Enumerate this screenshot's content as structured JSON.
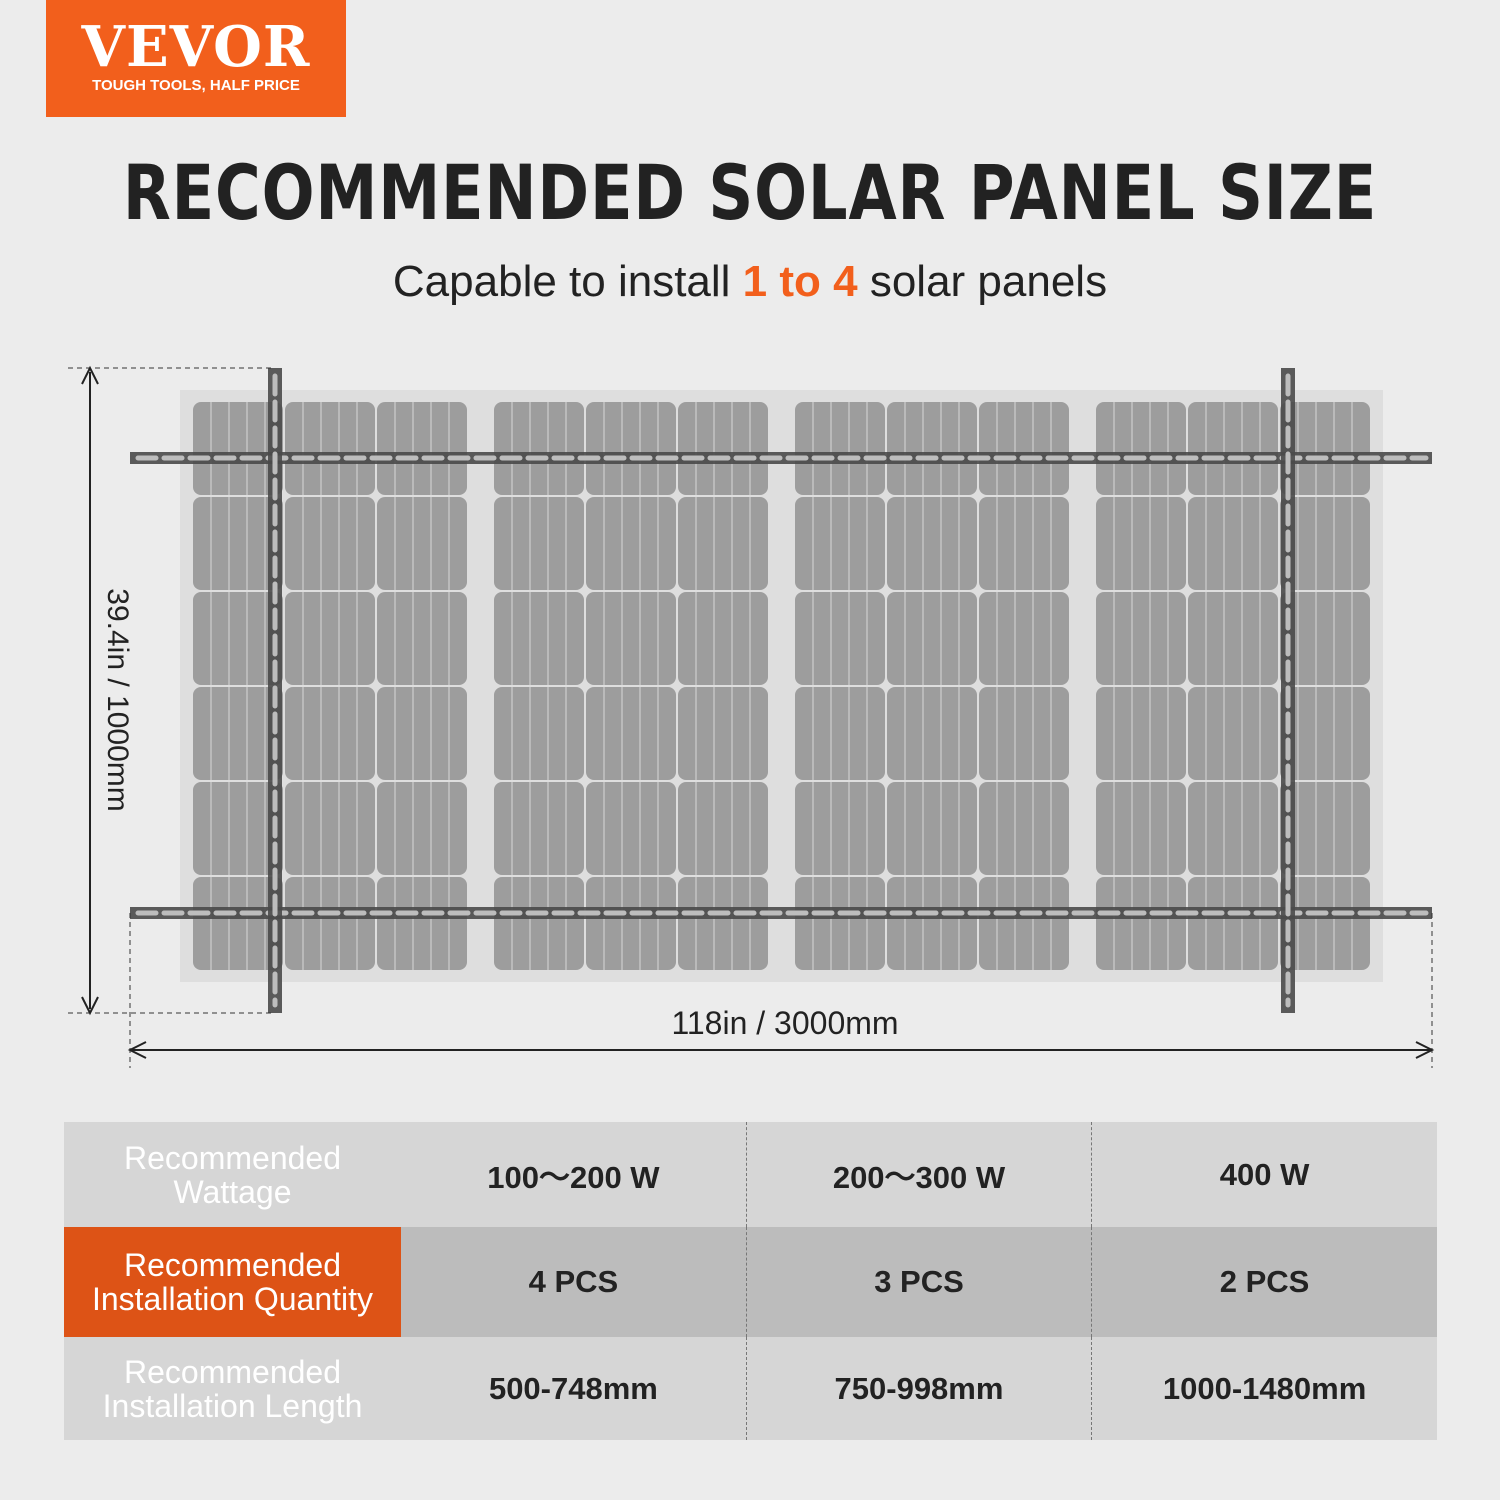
{
  "logo": {
    "brand": "VEVOR",
    "tagline": "TOUGH TOOLS, HALF PRICE",
    "color": "#f25f1c"
  },
  "title": "RECOMMENDED SOLAR PANEL SIZE",
  "subtitle": {
    "before": "Capable to install ",
    "highlight": "1 to 4",
    "after": " solar panels"
  },
  "dimensions": {
    "height": "39.4in / 1000mm",
    "width": "118in / 3000mm"
  },
  "table": {
    "rows": [
      {
        "label": "Recommended Wattage",
        "values": [
          "100～200 W",
          "200～300 W",
          "400 W"
        ]
      },
      {
        "label": "Recommended Installation Quantity",
        "values": [
          "4 PCS",
          "3 PCS",
          "2 PCS"
        ]
      },
      {
        "label": "Recommended Installation Length",
        "values": [
          "500-748mm",
          "750-998mm",
          "1000-1480mm"
        ]
      }
    ]
  }
}
